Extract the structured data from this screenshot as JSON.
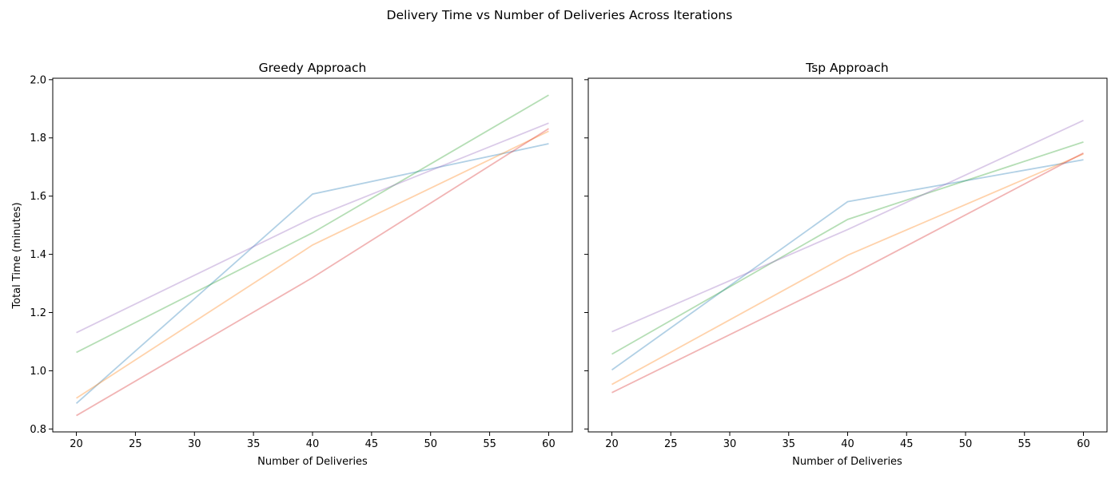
{
  "figure_title": "Delivery Time vs Number of Deliveries Across Iterations",
  "chart_data": [
    {
      "type": "line",
      "title": "Greedy Approach",
      "xlabel": "Number of Deliveries",
      "ylabel": "Total Time (minutes)",
      "xlim": [
        18,
        62
      ],
      "ylim": [
        0.79,
        2.005
      ],
      "x_ticks": [
        20,
        25,
        30,
        35,
        40,
        45,
        50,
        55,
        60
      ],
      "y_ticks": [
        0.8,
        1.0,
        1.2,
        1.4,
        1.6,
        1.8,
        2.0
      ],
      "grid": false,
      "x": [
        20,
        40,
        60
      ],
      "series": [
        {
          "color": "#1f77b4",
          "values": [
            0.888,
            1.607,
            1.78
          ]
        },
        {
          "color": "#ff7f0e",
          "values": [
            0.906,
            1.432,
            1.823
          ]
        },
        {
          "color": "#2ca02c",
          "values": [
            1.063,
            1.474,
            1.947
          ]
        },
        {
          "color": "#d62728",
          "values": [
            0.846,
            1.32,
            1.832
          ]
        },
        {
          "color": "#9467bd",
          "values": [
            1.131,
            1.525,
            1.851
          ]
        }
      ]
    },
    {
      "type": "line",
      "title": "Tsp Approach",
      "xlabel": "Number of Deliveries",
      "ylabel": "",
      "xlim": [
        18,
        62
      ],
      "ylim": [
        0.79,
        2.005
      ],
      "x_ticks": [
        20,
        25,
        30,
        35,
        40,
        45,
        50,
        55,
        60
      ],
      "y_ticks": [
        0.8,
        1.0,
        1.2,
        1.4,
        1.6,
        1.8,
        2.0
      ],
      "grid": false,
      "x": [
        20,
        40,
        60
      ],
      "series": [
        {
          "color": "#1f77b4",
          "values": [
            1.003,
            1.581,
            1.725
          ]
        },
        {
          "color": "#ff7f0e",
          "values": [
            0.953,
            1.397,
            1.745
          ]
        },
        {
          "color": "#2ca02c",
          "values": [
            1.057,
            1.52,
            1.786
          ]
        },
        {
          "color": "#d62728",
          "values": [
            0.925,
            1.323,
            1.748
          ]
        },
        {
          "color": "#9467bd",
          "values": [
            1.134,
            1.485,
            1.86
          ]
        }
      ]
    }
  ]
}
